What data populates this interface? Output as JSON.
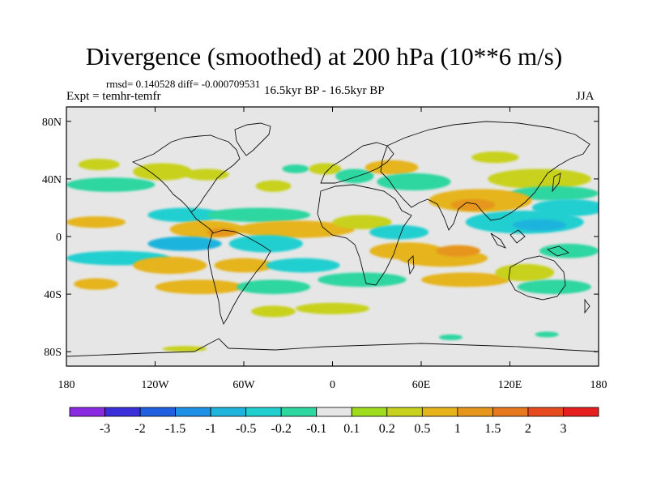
{
  "header": {
    "title": "Divergence (smoothed) at 200 hPa (10**6 m/s)",
    "stats": "rmsd= 0.140528 diff= -0.000709531",
    "experiment": "Expt = temhr-temfr",
    "period": "16.5kyr BP - 16.5kyr BP",
    "season": "JJA"
  },
  "chart_data": {
    "type": "heatmap",
    "title": "Divergence (smoothed) at 200 hPa (10**6 m/s)",
    "projection": "cylindrical equidistant",
    "lon_range": [
      -180,
      180
    ],
    "lat_range": [
      -90,
      90
    ],
    "x_ticks": [
      {
        "lon": -180,
        "label": "180"
      },
      {
        "lon": -120,
        "label": "120W"
      },
      {
        "lon": -60,
        "label": "60W"
      },
      {
        "lon": 0,
        "label": "0"
      },
      {
        "lon": 60,
        "label": "60E"
      },
      {
        "lon": 120,
        "label": "120E"
      },
      {
        "lon": 180,
        "label": "180"
      }
    ],
    "y_ticks": [
      {
        "lat": 80,
        "label": "80N"
      },
      {
        "lat": 40,
        "label": "40N"
      },
      {
        "lat": 0,
        "label": "0"
      },
      {
        "lat": -40,
        "label": "40S"
      },
      {
        "lat": -80,
        "label": "80S"
      }
    ],
    "background_color": "#e6e6e6",
    "colorbar": {
      "colors": [
        "#8a2be2",
        "#3a2fd8",
        "#1f5fe0",
        "#1e90e6",
        "#1fb4dc",
        "#22cfd0",
        "#2ed6a0",
        "#e6e6e6",
        "#a0dc1e",
        "#c8d21e",
        "#e6b41a",
        "#e6961a",
        "#e6781e",
        "#e64a1e",
        "#e61e1e"
      ],
      "labels": [
        "-3",
        "-2",
        "-1.5",
        "-1",
        "-0.5",
        "-0.2",
        "-0.1",
        "0.1",
        "0.2",
        "0.5",
        "1",
        "1.5",
        "2",
        "3"
      ]
    },
    "anomalies": [
      {
        "lon": -158,
        "lat": 50,
        "rx": 14,
        "ry": 4,
        "value": 0.2
      },
      {
        "lon": -115,
        "lat": 45,
        "rx": 20,
        "ry": 6,
        "value": 0.2
      },
      {
        "lon": -150,
        "lat": 36,
        "rx": 30,
        "ry": 5,
        "value": -0.2
      },
      {
        "lon": -85,
        "lat": 43,
        "rx": 15,
        "ry": 4,
        "value": 0.2
      },
      {
        "lon": -40,
        "lat": 35,
        "rx": 12,
        "ry": 4,
        "value": 0.2
      },
      {
        "lon": -25,
        "lat": 47,
        "rx": 9,
        "ry": 3,
        "value": -0.2
      },
      {
        "lon": -5,
        "lat": 47,
        "rx": 11,
        "ry": 4,
        "value": 0.2
      },
      {
        "lon": 15,
        "lat": 42,
        "rx": 13,
        "ry": 5,
        "value": -0.2
      },
      {
        "lon": 40,
        "lat": 48,
        "rx": 18,
        "ry": 5,
        "value": 0.5
      },
      {
        "lon": 55,
        "lat": 38,
        "rx": 25,
        "ry": 6,
        "value": -0.2
      },
      {
        "lon": 110,
        "lat": 55,
        "rx": 16,
        "ry": 4,
        "value": 0.2
      },
      {
        "lon": 140,
        "lat": 40,
        "rx": 35,
        "ry": 7,
        "value": 0.2
      },
      {
        "lon": 150,
        "lat": 30,
        "rx": 30,
        "ry": 5,
        "value": -0.2
      },
      {
        "lon": 160,
        "lat": 20,
        "rx": 25,
        "ry": 6,
        "value": -0.5
      },
      {
        "lon": 100,
        "lat": 25,
        "rx": 35,
        "ry": 8,
        "value": 0.5
      },
      {
        "lon": 95,
        "lat": 22,
        "rx": 15,
        "ry": 4,
        "value": 1
      },
      {
        "lon": 130,
        "lat": 10,
        "rx": 40,
        "ry": 8,
        "value": -0.5
      },
      {
        "lon": 140,
        "lat": 8,
        "rx": 18,
        "ry": 4,
        "value": -1
      },
      {
        "lon": -160,
        "lat": 10,
        "rx": 20,
        "ry": 4,
        "value": 0.5
      },
      {
        "lon": -100,
        "lat": 15,
        "rx": 25,
        "ry": 5,
        "value": -0.5
      },
      {
        "lon": -85,
        "lat": 5,
        "rx": 25,
        "ry": 6,
        "value": 0.5
      },
      {
        "lon": -75,
        "lat": 3,
        "rx": 10,
        "ry": 3,
        "value": 1
      },
      {
        "lon": -100,
        "lat": -5,
        "rx": 25,
        "ry": 5,
        "value": -1
      },
      {
        "lon": -145,
        "lat": -15,
        "rx": 35,
        "ry": 5,
        "value": -0.5
      },
      {
        "lon": -110,
        "lat": -20,
        "rx": 25,
        "ry": 6,
        "value": 0.5
      },
      {
        "lon": -50,
        "lat": 15,
        "rx": 35,
        "ry": 5,
        "value": -0.2
      },
      {
        "lon": -25,
        "lat": 5,
        "rx": 40,
        "ry": 6,
        "value": 0.5
      },
      {
        "lon": -45,
        "lat": -5,
        "rx": 25,
        "ry": 6,
        "value": -0.5
      },
      {
        "lon": -60,
        "lat": -20,
        "rx": 20,
        "ry": 5,
        "value": 0.5
      },
      {
        "lon": -20,
        "lat": -20,
        "rx": 25,
        "ry": 5,
        "value": -0.5
      },
      {
        "lon": -160,
        "lat": -33,
        "rx": 15,
        "ry": 4,
        "value": 0.5
      },
      {
        "lon": -90,
        "lat": -35,
        "rx": 30,
        "ry": 5,
        "value": 0.5
      },
      {
        "lon": -40,
        "lat": -35,
        "rx": 25,
        "ry": 5,
        "value": -0.2
      },
      {
        "lon": 20,
        "lat": 10,
        "rx": 20,
        "ry": 5,
        "value": 0.2
      },
      {
        "lon": 45,
        "lat": 3,
        "rx": 20,
        "ry": 5,
        "value": -0.5
      },
      {
        "lon": 50,
        "lat": -10,
        "rx": 25,
        "ry": 6,
        "value": 0.5
      },
      {
        "lon": 75,
        "lat": -15,
        "rx": 30,
        "ry": 6,
        "value": 0.5
      },
      {
        "lon": 85,
        "lat": -10,
        "rx": 15,
        "ry": 4,
        "value": 1
      },
      {
        "lon": 20,
        "lat": -30,
        "rx": 30,
        "ry": 5,
        "value": -0.2
      },
      {
        "lon": 90,
        "lat": -30,
        "rx": 30,
        "ry": 5,
        "value": 0.5
      },
      {
        "lon": 130,
        "lat": -25,
        "rx": 20,
        "ry": 6,
        "value": 0.2
      },
      {
        "lon": 160,
        "lat": -10,
        "rx": 20,
        "ry": 5,
        "value": -0.2
      },
      {
        "lon": 150,
        "lat": -35,
        "rx": 25,
        "ry": 5,
        "value": -0.2
      },
      {
        "lon": 0,
        "lat": -50,
        "rx": 25,
        "ry": 4,
        "value": 0.2
      },
      {
        "lon": -40,
        "lat": -52,
        "rx": 15,
        "ry": 4,
        "value": 0.2
      },
      {
        "lon": -100,
        "lat": -78,
        "rx": 15,
        "ry": 2,
        "value": 0.2
      },
      {
        "lon": 80,
        "lat": -70,
        "rx": 8,
        "ry": 2,
        "value": -0.2
      },
      {
        "lon": 145,
        "lat": -68,
        "rx": 8,
        "ry": 2,
        "value": -0.2
      }
    ]
  }
}
